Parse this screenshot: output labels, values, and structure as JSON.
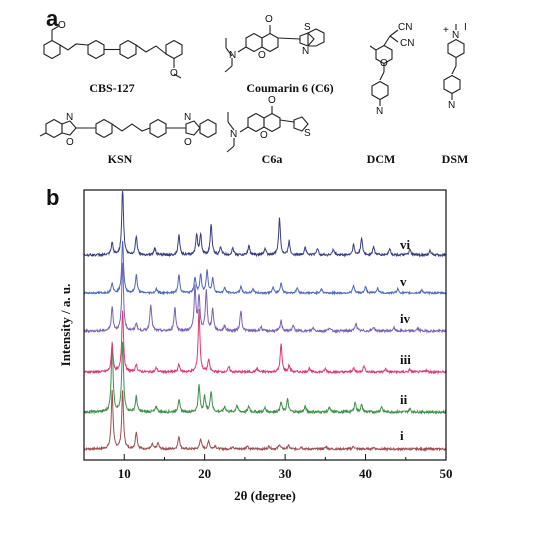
{
  "panels": {
    "a": "a",
    "b": "b"
  },
  "compounds": [
    {
      "key": "cbs127",
      "name": "CBS-127"
    },
    {
      "key": "c6",
      "name": "Coumarin 6 (C6)"
    },
    {
      "key": "dcm",
      "name": "DCM"
    },
    {
      "key": "dsm",
      "name": "DSM"
    },
    {
      "key": "ksn",
      "name": "KSN"
    },
    {
      "key": "c6a",
      "name": "C6a"
    }
  ],
  "atoms": {
    "oxygen": "O",
    "nitrogen": "N",
    "sulfur": "S",
    "cyano": "CN",
    "nitrogen_plus": "N",
    "plus": "+",
    "iodide": "I"
  },
  "chart_data": {
    "type": "line",
    "xlabel": "2θ (degree)",
    "ylabel": "Intensity / a. u.",
    "xlim": [
      5,
      50
    ],
    "xticks": [
      10,
      20,
      30,
      40,
      50
    ],
    "yticks": [],
    "grid": false,
    "legend": "none",
    "series": [
      {
        "name": "i",
        "color": "#9a4f52",
        "offset": 0,
        "peaks": [
          [
            8.5,
            100
          ],
          [
            9.8,
            100
          ],
          [
            11.5,
            30
          ],
          [
            13.5,
            8
          ],
          [
            14.2,
            10
          ],
          [
            16.8,
            22
          ],
          [
            19.5,
            18
          ],
          [
            20.5,
            14
          ],
          [
            21.3,
            6
          ],
          [
            23.5,
            5
          ],
          [
            25.3,
            6
          ],
          [
            28.0,
            5
          ],
          [
            29.3,
            8
          ],
          [
            30.4,
            6
          ],
          [
            32.0,
            4
          ],
          [
            35.1,
            4
          ],
          [
            38.5,
            5
          ],
          [
            41.0,
            3
          ]
        ]
      },
      {
        "name": "ii",
        "color": "#3f8f4a",
        "offset": 1,
        "peaks": [
          [
            8.5,
            100
          ],
          [
            9.8,
            100
          ],
          [
            11.5,
            22
          ],
          [
            14.0,
            8
          ],
          [
            16.8,
            18
          ],
          [
            19.3,
            38
          ],
          [
            20.0,
            22
          ],
          [
            20.8,
            30
          ],
          [
            22.5,
            8
          ],
          [
            24.0,
            10
          ],
          [
            25.5,
            8
          ],
          [
            27.5,
            6
          ],
          [
            29.5,
            14
          ],
          [
            30.3,
            18
          ],
          [
            32.5,
            8
          ],
          [
            35.5,
            6
          ],
          [
            38.7,
            14
          ],
          [
            39.5,
            10
          ],
          [
            42.0,
            8
          ],
          [
            45.5,
            5
          ]
        ]
      },
      {
        "name": "iii",
        "color": "#d83a77",
        "offset": 2,
        "peaks": [
          [
            8.5,
            45
          ],
          [
            9.8,
            100
          ],
          [
            11.5,
            12
          ],
          [
            14.0,
            7
          ],
          [
            16.8,
            12
          ],
          [
            19.3,
            100
          ],
          [
            20.5,
            20
          ],
          [
            23.0,
            8
          ],
          [
            26.5,
            6
          ],
          [
            29.5,
            45
          ],
          [
            30.5,
            10
          ],
          [
            33.0,
            6
          ],
          [
            35.0,
            5
          ],
          [
            38.5,
            6
          ],
          [
            39.8,
            10
          ],
          [
            42.5,
            5
          ],
          [
            45.5,
            4
          ],
          [
            47.5,
            3
          ]
        ]
      },
      {
        "name": "iv",
        "color": "#7a62b0",
        "offset": 3,
        "peaks": [
          [
            8.5,
            35
          ],
          [
            9.8,
            100
          ],
          [
            11.5,
            12
          ],
          [
            13.3,
            40
          ],
          [
            16.3,
            35
          ],
          [
            18.8,
            65
          ],
          [
            19.3,
            50
          ],
          [
            20.2,
            60
          ],
          [
            21.0,
            32
          ],
          [
            22.5,
            8
          ],
          [
            24.5,
            30
          ],
          [
            27.0,
            6
          ],
          [
            29.5,
            15
          ],
          [
            31.0,
            8
          ],
          [
            33.5,
            5
          ],
          [
            35.5,
            5
          ],
          [
            38.8,
            12
          ],
          [
            41.0,
            6
          ],
          [
            43.5,
            5
          ],
          [
            46.5,
            4
          ]
        ]
      },
      {
        "name": "v",
        "color": "#5068b8",
        "offset": 4,
        "peaks": [
          [
            8.5,
            20
          ],
          [
            9.8,
            100
          ],
          [
            11.5,
            35
          ],
          [
            14.0,
            8
          ],
          [
            16.8,
            35
          ],
          [
            18.8,
            30
          ],
          [
            19.5,
            35
          ],
          [
            20.3,
            45
          ],
          [
            21.0,
            28
          ],
          [
            22.5,
            10
          ],
          [
            24.5,
            12
          ],
          [
            26.0,
            8
          ],
          [
            28.5,
            10
          ],
          [
            29.5,
            20
          ],
          [
            31.5,
            10
          ],
          [
            34.5,
            8
          ],
          [
            38.5,
            14
          ],
          [
            40.0,
            12
          ],
          [
            41.5,
            10
          ],
          [
            44.0,
            8
          ],
          [
            47.0,
            6
          ]
        ]
      },
      {
        "name": "vi",
        "color": "#383f80",
        "offset": 5,
        "peaks": [
          [
            8.5,
            18
          ],
          [
            9.8,
            100
          ],
          [
            11.5,
            28
          ],
          [
            13.8,
            10
          ],
          [
            16.8,
            30
          ],
          [
            19.0,
            30
          ],
          [
            19.5,
            30
          ],
          [
            20.8,
            45
          ],
          [
            22.0,
            12
          ],
          [
            23.5,
            10
          ],
          [
            25.5,
            14
          ],
          [
            27.5,
            10
          ],
          [
            29.3,
            55
          ],
          [
            30.5,
            20
          ],
          [
            32.5,
            12
          ],
          [
            34.0,
            10
          ],
          [
            36.0,
            8
          ],
          [
            38.5,
            15
          ],
          [
            39.5,
            25
          ],
          [
            41.0,
            12
          ],
          [
            43.0,
            10
          ],
          [
            45.5,
            8
          ],
          [
            48.0,
            6
          ]
        ]
      }
    ]
  }
}
